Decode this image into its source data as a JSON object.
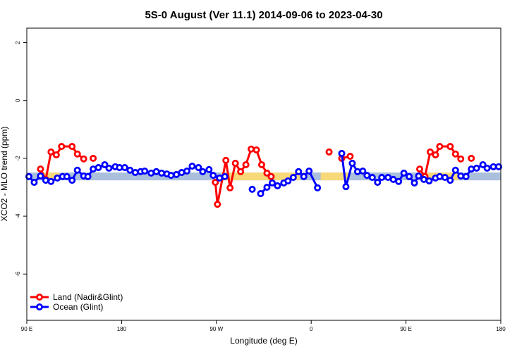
{
  "chart_data": {
    "type": "line",
    "title": "5S-0 August (Ver 11.1)   2014-09-06 to 2023-04-30",
    "x_label": "Longitude (deg E)",
    "y_label": "XCO2 - MLO trend (ppm)",
    "xlim": [
      90,
      540
    ],
    "xticks": [
      {
        "value": 90,
        "label": "90 E"
      },
      180,
      {
        "value": 270,
        "label": "90 W"
      },
      {
        "value": 360,
        "label": "0"
      },
      {
        "value": 450,
        "label": "90 E"
      },
      {
        "value": 540,
        "label": "180"
      }
    ],
    "ylim": [
      -7.6,
      2.5
    ],
    "yticks": [
      -6,
      -4,
      -2,
      0,
      2
    ],
    "legend": "bottom-left",
    "bands": [
      {
        "color": "#a9bfdc",
        "x": [
          90,
          540
        ],
        "y": [
          -2.76,
          -2.49
        ]
      },
      {
        "color": "#f7d97a",
        "x": [
          105,
          121
        ],
        "y": [
          -2.76,
          -2.49
        ]
      },
      {
        "color": "#f7d97a",
        "x": [
          275,
          349
        ],
        "y": [
          -2.76,
          -2.49
        ]
      },
      {
        "color": "#f7d97a",
        "x": [
          369,
          396
        ],
        "y": [
          -2.76,
          -2.49
        ]
      },
      {
        "color": "#f7d97a",
        "x": [
          463,
          500
        ],
        "y": [
          -2.76,
          -2.49
        ]
      }
    ],
    "series": [
      {
        "name": "Land (Nadir&Glint)",
        "color": "#ff0000",
        "x": [
          103,
          108,
          113,
          118,
          123,
          133,
          138,
          144,
          null,
          153,
          null,
          269,
          271,
          279,
          283,
          288,
          293,
          298,
          303,
          308,
          313,
          318,
          322,
          null,
          377,
          null,
          389,
          397,
          null,
          463,
          468,
          473,
          478,
          482,
          492,
          497,
          502,
          null,
          512
        ],
        "values": [
          -2.37,
          -2.73,
          -1.78,
          -1.88,
          -1.59,
          -1.59,
          -1.85,
          -2.02,
          null,
          -2.0,
          null,
          -2.83,
          -3.59,
          -2.07,
          -3.02,
          -2.17,
          -2.46,
          -2.22,
          -1.68,
          -1.71,
          -2.22,
          -2.51,
          -2.63,
          null,
          -1.78,
          null,
          -2.0,
          -1.93,
          null,
          -2.37,
          -2.63,
          -1.78,
          -1.88,
          -1.59,
          -1.59,
          -1.85,
          -2.02,
          null,
          -2.0
        ]
      },
      {
        "name": "Ocean (Glint)",
        "color": "#0000ff",
        "x": [
          92,
          97,
          103,
          108,
          113,
          119,
          124,
          128,
          133,
          138,
          144,
          148,
          153,
          158,
          164,
          168,
          174,
          178,
          183,
          188,
          193,
          198,
          202,
          208,
          213,
          218,
          223,
          227,
          232,
          237,
          242,
          247,
          253,
          257,
          263,
          267,
          273,
          278,
          null,
          304,
          null,
          312,
          318,
          323,
          328,
          334,
          338,
          343,
          348,
          353,
          358,
          366,
          null,
          389,
          393,
          399,
          404,
          409,
          413,
          418,
          423,
          427,
          433,
          438,
          443,
          448,
          453,
          458,
          462,
          467,
          472,
          478,
          482,
          487,
          492,
          497,
          502,
          507,
          512,
          517,
          523,
          527,
          533,
          538
        ],
        "values": [
          -2.63,
          -2.83,
          -2.61,
          -2.76,
          -2.8,
          -2.68,
          -2.63,
          -2.63,
          -2.76,
          -2.41,
          -2.61,
          -2.63,
          -2.37,
          -2.32,
          -2.22,
          -2.34,
          -2.29,
          -2.32,
          -2.32,
          -2.41,
          -2.49,
          -2.46,
          -2.44,
          -2.51,
          -2.46,
          -2.51,
          -2.54,
          -2.59,
          -2.56,
          -2.49,
          -2.44,
          -2.27,
          -2.32,
          -2.46,
          -2.39,
          -2.59,
          -2.68,
          -2.63,
          null,
          -3.07,
          null,
          -3.22,
          -3.0,
          -2.85,
          -2.95,
          -2.85,
          -2.78,
          -2.66,
          -2.46,
          -2.63,
          -2.44,
          -3.02,
          null,
          -1.83,
          -2.98,
          -2.17,
          -2.46,
          -2.44,
          -2.59,
          -2.66,
          -2.83,
          -2.66,
          -2.66,
          -2.73,
          -2.8,
          -2.51,
          -2.63,
          -2.85,
          -2.61,
          -2.73,
          -2.78,
          -2.68,
          -2.63,
          -2.66,
          -2.76,
          -2.41,
          -2.61,
          -2.63,
          -2.37,
          -2.34,
          -2.22,
          -2.34,
          -2.29,
          -2.29
        ]
      }
    ]
  }
}
